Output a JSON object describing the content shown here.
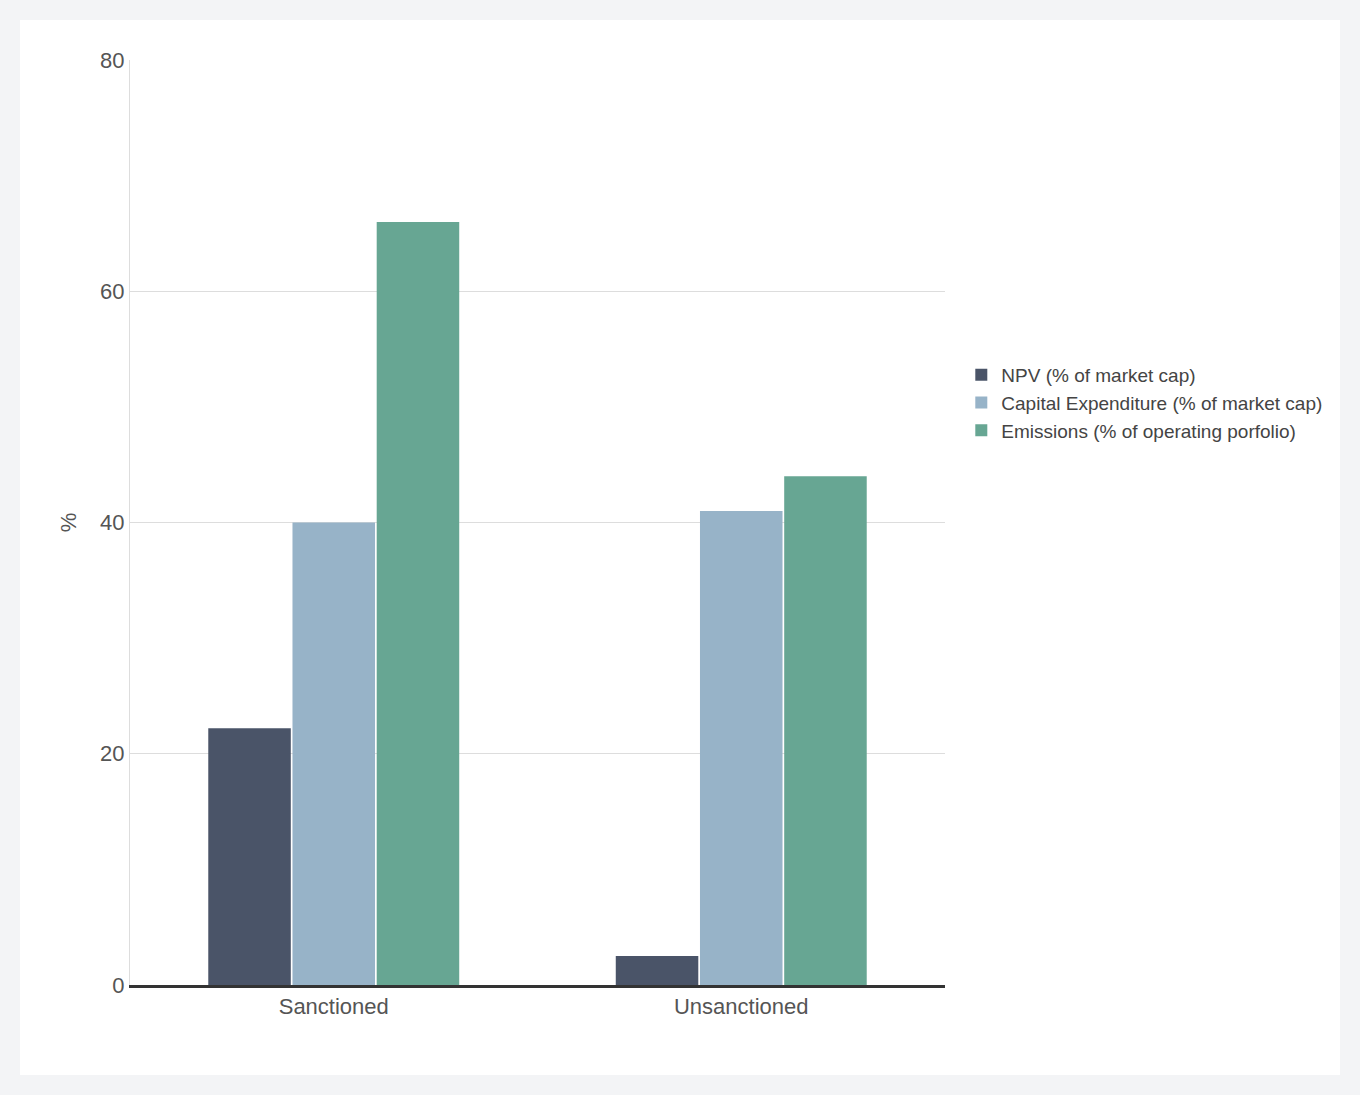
{
  "chart_data": {
    "type": "bar",
    "categories": [
      "Sanctioned",
      "Unsanctioned"
    ],
    "series": [
      {
        "name": "NPV (% of market cap)",
        "color": "#4a5468",
        "values": [
          22.2,
          2.5
        ]
      },
      {
        "name": "Capital Expenditure (% of market cap)",
        "color": "#97b3c8",
        "values": [
          40,
          41
        ]
      },
      {
        "name": "Emissions (% of operating porfolio)",
        "color": "#67a693",
        "values": [
          66,
          44
        ]
      }
    ],
    "y_label": "%",
    "ylim": [
      0,
      80
    ],
    "yticks": [
      0,
      20,
      40,
      60,
      80
    ],
    "grid": true,
    "legend": "right"
  }
}
